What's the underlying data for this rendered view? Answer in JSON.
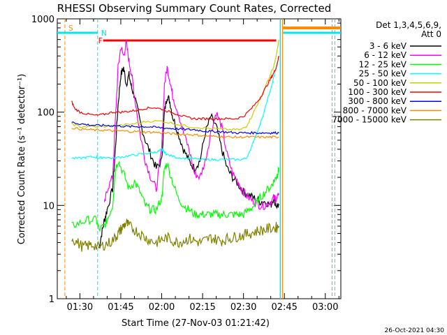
{
  "chart_data": {
    "type": "line",
    "title": "RHESSI Observing Summary Count Rates, Corrected",
    "xlabel": "Start Time (27-Nov-03 01:21:42)",
    "ylabel": "Corrected Count Rate (s⁻¹ detector⁻¹)",
    "yscale": "log",
    "ylim": [
      1,
      1000
    ],
    "xlim_minutes_of_day": [
      81.7,
      185.7
    ],
    "x_ticks": [
      "01:30",
      "01:45",
      "02:00",
      "02:15",
      "02:30",
      "02:45",
      "03:00"
    ],
    "y_ticks": [
      "1",
      "10",
      "100",
      "1000"
    ],
    "legend_header": [
      "Det 1,3,4,5,6,9,",
      "Att 0"
    ],
    "legend_placement": "right",
    "footer": "26-Oct-2021 04:30",
    "markers": {
      "S": {
        "label": "S",
        "time_min": 84.5,
        "color": "#ff8c00"
      },
      "N": {
        "label": "N",
        "time_min": 96.5,
        "color": "#00e5ee"
      },
      "F": {
        "label": "F",
        "time_min": 98.5,
        "color": "#ff0000"
      }
    },
    "series": [
      {
        "name": "3 - 6 keV",
        "color": "#000000",
        "x": [
          97,
          98,
          99,
          100,
          102,
          103,
          104,
          105,
          106,
          107,
          108,
          109,
          110,
          112,
          114,
          116,
          118,
          120,
          121,
          122,
          123,
          124,
          126,
          128,
          130,
          132,
          134,
          136,
          138,
          140,
          142,
          144,
          146,
          148,
          150,
          152,
          154,
          156,
          158,
          160,
          161,
          162,
          163
        ],
        "y": [
          3.5,
          5,
          7,
          9,
          15,
          40,
          120,
          250,
          300,
          200,
          250,
          180,
          150,
          80,
          50,
          35,
          25,
          30,
          100,
          150,
          130,
          90,
          60,
          40,
          30,
          25,
          30,
          60,
          90,
          70,
          40,
          25,
          20,
          17,
          14,
          13,
          12,
          11,
          11,
          10,
          12,
          10,
          10
        ]
      },
      {
        "name": "6 - 12 keV",
        "color": "#ff00ff",
        "x": [
          99,
          100,
          102,
          103,
          104,
          105,
          106,
          107,
          108,
          109,
          110,
          112,
          114,
          116,
          118,
          120,
          121,
          122,
          123,
          124,
          126,
          128,
          130,
          132,
          134,
          136,
          138,
          140,
          142,
          144,
          146,
          148,
          150,
          152,
          154,
          156,
          158,
          160,
          161,
          162,
          163
        ],
        "y": [
          10,
          15,
          20,
          80,
          300,
          500,
          400,
          550,
          350,
          250,
          150,
          60,
          30,
          20,
          15,
          40,
          200,
          300,
          220,
          150,
          100,
          60,
          40,
          22,
          20,
          30,
          60,
          100,
          70,
          35,
          22,
          18,
          14,
          12,
          11,
          10,
          10,
          11,
          12,
          12,
          13
        ]
      },
      {
        "name": "12 - 25 keV",
        "color": "#00ff00",
        "x": [
          87,
          90,
          93,
          96,
          97,
          99,
          100,
          102,
          103,
          104,
          106,
          108,
          110,
          112,
          114,
          116,
          118,
          120,
          121,
          122,
          124,
          126,
          128,
          130,
          132,
          134,
          136,
          138,
          140,
          142,
          144,
          146,
          148,
          150,
          152,
          154,
          156,
          158,
          160,
          161,
          162,
          162.5,
          163
        ],
        "y": [
          6,
          6.5,
          7,
          7,
          5.5,
          6,
          7,
          10,
          25,
          30,
          22,
          15,
          18,
          14,
          10,
          9,
          9,
          12,
          25,
          28,
          18,
          12,
          10,
          9,
          8,
          8,
          8,
          8,
          8,
          8,
          8,
          8,
          8,
          8,
          9,
          10,
          12,
          14,
          16,
          18,
          20,
          22,
          25
        ]
      },
      {
        "name": "25 - 50 keV",
        "color": "#00ffff",
        "x": [
          87,
          90,
          93,
          96,
          97,
          99,
          102,
          105,
          108,
          111,
          114,
          117,
          119,
          120,
          121,
          122,
          125,
          128,
          131,
          134,
          137,
          140,
          143,
          146,
          149,
          151,
          154,
          157,
          160,
          162,
          163
        ],
        "y": [
          32,
          32,
          33,
          33,
          32,
          33,
          32,
          33,
          34,
          35,
          36,
          37,
          38,
          40,
          37,
          35,
          33,
          32,
          32,
          31,
          31,
          31,
          31,
          31,
          31,
          32,
          50,
          90,
          180,
          300,
          400
        ]
      },
      {
        "name": "50 - 100 keV",
        "color": "#cccc00",
        "x": [
          87,
          90,
          95,
          100,
          105,
          110,
          115,
          120,
          125,
          130,
          135,
          140,
          145,
          149,
          151,
          153,
          155,
          157,
          159,
          161,
          162,
          163
        ],
        "y": [
          75,
          70,
          70,
          70,
          72,
          75,
          80,
          80,
          75,
          70,
          68,
          66,
          65,
          65,
          70,
          90,
          120,
          160,
          220,
          300,
          400,
          600
        ]
      },
      {
        "name": "100 - 300 keV",
        "color": "#ff0000",
        "x": [
          87,
          88,
          90,
          93,
          96,
          99,
          102,
          105,
          108,
          111,
          114,
          117,
          120,
          123,
          126,
          129,
          132,
          135,
          138,
          141,
          144,
          147,
          150,
          153,
          156,
          158,
          160,
          161,
          162,
          163
        ],
        "y": [
          130,
          110,
          100,
          95,
          92,
          95,
          100,
          100,
          102,
          105,
          110,
          112,
          108,
          100,
          95,
          88,
          85,
          85,
          85,
          85,
          85,
          85,
          90,
          110,
          140,
          180,
          230,
          260,
          300,
          400
        ]
      },
      {
        "name": "300 - 800 keV",
        "color": "#0000ff",
        "x": [
          87,
          90,
          93,
          96,
          99,
          102,
          105,
          108,
          111,
          114,
          117,
          120,
          123,
          126,
          129,
          132,
          135,
          138,
          141,
          144,
          147,
          150,
          153,
          156,
          159,
          161,
          163
        ],
        "y": [
          78,
          75,
          73,
          72,
          72,
          72,
          71,
          70,
          70,
          70,
          69,
          68,
          67,
          66,
          65,
          65,
          63,
          62,
          62,
          61,
          60,
          60,
          60,
          60,
          60,
          60,
          60
        ]
      },
      {
        "name": "800 - 7000 keV",
        "color": "#ff8c00",
        "x": [
          87,
          90,
          93,
          96,
          99,
          102,
          105,
          108,
          111,
          114,
          117,
          120,
          123,
          126,
          129,
          132,
          135,
          138,
          141,
          144,
          147,
          150,
          153,
          156,
          159,
          161,
          163
        ],
        "y": [
          68,
          66,
          65,
          64,
          64,
          63,
          63,
          62,
          62,
          61,
          61,
          60,
          59,
          58,
          58,
          57,
          56,
          55,
          55,
          54,
          54,
          54,
          54,
          54,
          54,
          54,
          54
        ]
      },
      {
        "name": "7000 - 15000 keV",
        "color": "#808000",
        "x": [
          87,
          89,
          91,
          93,
          95,
          97,
          99,
          101,
          103,
          104,
          105,
          106,
          107,
          108,
          110,
          112,
          114,
          116,
          118,
          120,
          122,
          124,
          126,
          128,
          130,
          132,
          134,
          136,
          138,
          140,
          142,
          144,
          146,
          148,
          150,
          152,
          154,
          156,
          158,
          160,
          162,
          163
        ],
        "y": [
          4.5,
          4,
          3.6,
          3.7,
          3.8,
          3.5,
          3.8,
          4,
          4.5,
          5,
          5.5,
          6,
          6.5,
          6,
          5.5,
          5,
          4.5,
          4.2,
          4,
          4.3,
          4.5,
          4.2,
          4,
          4.2,
          4.4,
          4.2,
          4,
          4.2,
          4.5,
          4.3,
          4.2,
          4.4,
          4.5,
          4.7,
          4.8,
          5,
          5.2,
          5.4,
          5.5,
          5.7,
          5.8,
          6
        ]
      }
    ]
  }
}
